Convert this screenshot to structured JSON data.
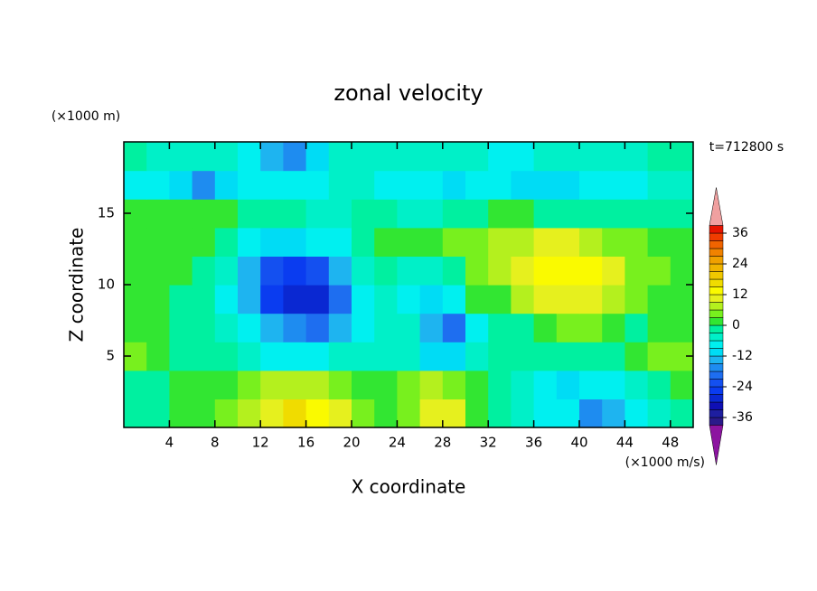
{
  "chart_data": {
    "type": "contour",
    "title": "zonal velocity",
    "y_unit": "(×1000 m)",
    "time_label": "t=712800 s",
    "x_label": "X coordinate",
    "y_label": "Z coordinate",
    "x_unit": "(×1000 m/s)",
    "xlim": [
      0,
      50
    ],
    "ylim": [
      0,
      20
    ],
    "xticks": [
      4,
      8,
      12,
      16,
      20,
      24,
      28,
      32,
      36,
      40,
      44,
      48
    ],
    "yticks": [
      5,
      10,
      15
    ],
    "x": [
      1,
      3,
      5,
      7,
      9,
      11,
      13,
      15,
      17,
      19,
      21,
      23,
      25,
      27,
      29,
      31,
      33,
      35,
      37,
      39,
      41,
      43,
      45,
      47,
      49
    ],
    "y": [
      1,
      3,
      5,
      7,
      9,
      11,
      13,
      15,
      17,
      19
    ],
    "z": [
      [
        -1,
        -1,
        1,
        1,
        4,
        7,
        12,
        16,
        14,
        10,
        4,
        2,
        6,
        10,
        11,
        3,
        -2,
        -4,
        -7,
        -8,
        -15,
        -14,
        -6,
        -3,
        -2
      ],
      [
        -2,
        -1,
        1,
        2,
        3,
        5,
        7,
        8,
        8,
        6,
        3,
        1,
        5,
        7,
        6,
        1,
        -2,
        -5,
        -8,
        -9,
        -8,
        -6,
        -3,
        -1,
        1
      ],
      [
        5,
        1,
        -2,
        -2,
        -2,
        -4,
        -6,
        -7,
        -7,
        -5,
        -3,
        -3,
        -4,
        -9,
        -11,
        -4,
        -2,
        -2,
        -2,
        -2,
        -2,
        -1,
        2,
        5,
        6
      ],
      [
        3,
        2,
        -1,
        -2,
        -3,
        -8,
        -12,
        -16,
        -18,
        -14,
        -6,
        -3,
        -5,
        -12,
        -18,
        -6,
        -2,
        0,
        3,
        5,
        4,
        2,
        0,
        1,
        3
      ],
      [
        3,
        2,
        0,
        -2,
        -6,
        -14,
        -24,
        -27,
        -27,
        -20,
        -8,
        -4,
        -8,
        -10,
        -8,
        1,
        3,
        7,
        10,
        12,
        12,
        9,
        5,
        3,
        2
      ],
      [
        3,
        3,
        1,
        -1,
        -4,
        -12,
        -22,
        -24,
        -22,
        -14,
        -5,
        -2,
        -3,
        -4,
        -2,
        4,
        8,
        11,
        13,
        14,
        13,
        10,
        6,
        4,
        3
      ],
      [
        2,
        2,
        2,
        1,
        -2,
        -6,
        -9,
        -10,
        -8,
        -6,
        -1,
        1,
        2,
        2,
        4,
        5,
        7,
        9,
        10,
        10,
        8,
        6,
        4,
        3,
        2
      ],
      [
        1,
        1,
        2,
        1,
        1,
        0,
        -1,
        -2,
        -3,
        -3,
        -2,
        -2,
        -4,
        -4,
        -2,
        0,
        1,
        1,
        0,
        0,
        -1,
        -1,
        -1,
        -1,
        -1
      ],
      [
        -6,
        -7,
        -9,
        -15,
        -10,
        -8,
        -8,
        -7,
        -6,
        -5,
        -5,
        -6,
        -8,
        -8,
        -9,
        -8,
        -8,
        -9,
        -10,
        -9,
        -8,
        -7,
        -6,
        -5,
        -4
      ],
      [
        -2,
        -3,
        -4,
        -4,
        -5,
        -8,
        -12,
        -16,
        -10,
        -5,
        -3,
        -3,
        -3,
        -4,
        -5,
        -5,
        -6,
        -6,
        -5,
        -4,
        -4,
        -3,
        -3,
        -2,
        -2
      ]
    ],
    "levels": [
      -39,
      -36,
      -33,
      -30,
      -27,
      -24,
      -21,
      -18,
      -15,
      -12,
      -9,
      -6,
      -3,
      0,
      3,
      6,
      9,
      12,
      15,
      18,
      21,
      24,
      27,
      30,
      33,
      36,
      39
    ],
    "colors": [
      "#2a1a8a",
      "#1e1ea0",
      "#0f0fb4",
      "#0a28d2",
      "#0a3cf0",
      "#1450f0",
      "#1e6ef0",
      "#1e8cf0",
      "#1eb4f0",
      "#00dcf5",
      "#00f0f0",
      "#00f0c8",
      "#00f0a0",
      "#32e632",
      "#78f01e",
      "#b4f01e",
      "#e6f01e",
      "#fafa00",
      "#f0dc00",
      "#f0c800",
      "#f0b400",
      "#f0a000",
      "#f08200",
      "#f06400",
      "#f03c00",
      "#e61400"
    ],
    "under_color": "#8c14a0",
    "over_color": "#f0a0a0",
    "colorbar_ticks": [
      -36,
      -24,
      -12,
      0,
      12,
      24,
      36
    ]
  }
}
